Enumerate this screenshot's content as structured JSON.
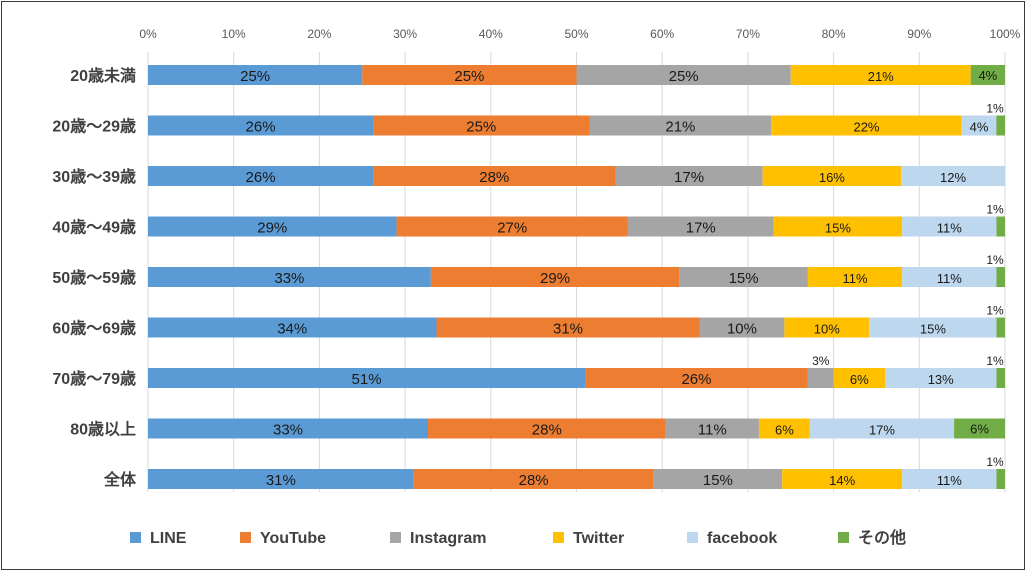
{
  "chart_data": {
    "type": "bar",
    "orientation": "horizontal",
    "stacked": "percent",
    "categories": [
      "20歳未満",
      "20歳～29歳",
      "30歳～39歳",
      "40歳～49歳",
      "50歳～59歳",
      "60歳～69歳",
      "70歳～79歳",
      "80歳以上",
      "全体"
    ],
    "series": [
      {
        "name": "LINE",
        "color": "#5b9bd5",
        "values": [
          25,
          26,
          26,
          29,
          33,
          34,
          51,
          33,
          31
        ]
      },
      {
        "name": "YouTube",
        "color": "#ed7d31",
        "values": [
          25,
          25,
          28,
          27,
          29,
          31,
          26,
          28,
          28
        ]
      },
      {
        "name": "Instagram",
        "color": "#a5a5a5",
        "values": [
          25,
          21,
          17,
          17,
          15,
          10,
          3,
          11,
          15
        ]
      },
      {
        "name": "Twitter",
        "color": "#ffc000",
        "values": [
          21,
          22,
          16,
          15,
          11,
          10,
          6,
          6,
          14
        ]
      },
      {
        "name": "facebook",
        "color": "#bdd7ee",
        "values": [
          0,
          4,
          12,
          11,
          11,
          15,
          13,
          17,
          11
        ]
      },
      {
        "name": "その他",
        "color": "#70ad47",
        "values": [
          4,
          1,
          0,
          1,
          1,
          1,
          1,
          6,
          1
        ]
      }
    ],
    "data_labels": [
      [
        "25%",
        "25%",
        "25%",
        "21%",
        "",
        "4%"
      ],
      [
        "26%",
        "25%",
        "21%",
        "22%",
        "4%",
        "1%"
      ],
      [
        "26%",
        "28%",
        "17%",
        "16%",
        "12%",
        ""
      ],
      [
        "29%",
        "27%",
        "17%",
        "15%",
        "11%",
        "1%"
      ],
      [
        "33%",
        "29%",
        "15%",
        "11%",
        "11%",
        "1%"
      ],
      [
        "34%",
        "31%",
        "10%",
        "10%",
        "15%",
        "1%"
      ],
      [
        "51%",
        "26%",
        "3%",
        "6%",
        "13%",
        "1%"
      ],
      [
        "33%",
        "28%",
        "11%",
        "6%",
        "17%",
        "6%"
      ],
      [
        "31%",
        "28%",
        "15%",
        "14%",
        "11%",
        "1%"
      ]
    ],
    "x_ticks": [
      "0%",
      "10%",
      "20%",
      "30%",
      "40%",
      "50%",
      "60%",
      "70%",
      "80%",
      "90%",
      "100%"
    ],
    "xlim": [
      0,
      100
    ],
    "grid": true,
    "legend": "bottom"
  }
}
